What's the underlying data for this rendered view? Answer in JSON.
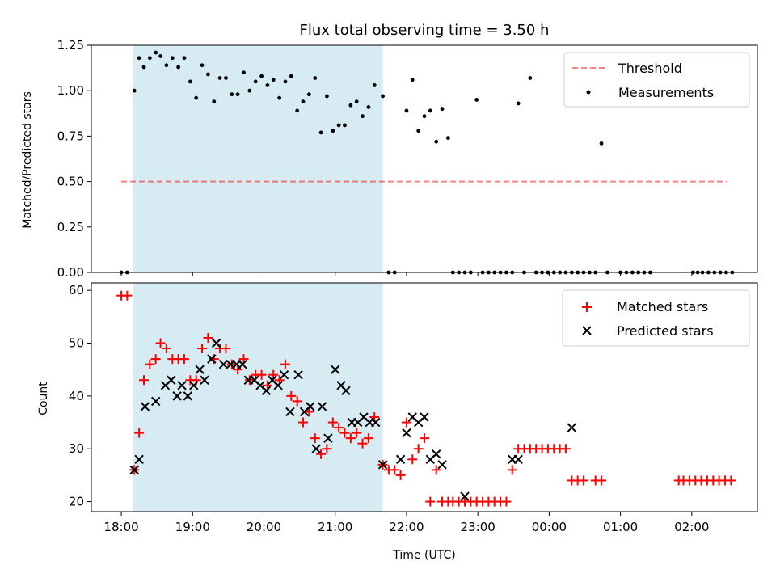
{
  "chart_data": [
    {
      "type": "scatter",
      "title": "Flux total observing time = 3.50 h",
      "ylabel": "Matched/Predicted stars",
      "xlabel": "",
      "ylim": [
        0,
        1.25
      ],
      "x_unit": "hours since 18:00 UTC",
      "xlim": [
        -0.42,
        8.92
      ],
      "yticks": [
        {
          "v": 0.0,
          "label": "0.00"
        },
        {
          "v": 0.25,
          "label": "0.25"
        },
        {
          "v": 0.5,
          "label": "0.50"
        },
        {
          "v": 0.75,
          "label": "0.75"
        },
        {
          "v": 1.0,
          "label": "1.00"
        },
        {
          "v": 1.25,
          "label": "1.25"
        }
      ],
      "shaded_span": {
        "x_start": 0.167,
        "x_end": 3.667,
        "color": "#add8e6"
      },
      "threshold": {
        "name": "Threshold",
        "value": 0.5,
        "x_start": 0.0,
        "x_end": 8.5,
        "color": "#ff0000"
      },
      "legend": {
        "placement": "top-right",
        "entries": [
          "Threshold",
          "Measurements"
        ]
      },
      "series": [
        {
          "name": "Measurements",
          "color": "#000000",
          "marker": "dot",
          "points": [
            [
              0.0,
              0.0
            ],
            [
              0.083,
              0.0
            ],
            [
              0.183,
              1.0
            ],
            [
              0.25,
              1.18
            ],
            [
              0.317,
              1.13
            ],
            [
              0.4,
              1.18
            ],
            [
              0.483,
              1.21
            ],
            [
              0.55,
              1.19
            ],
            [
              0.633,
              1.14
            ],
            [
              0.717,
              1.18
            ],
            [
              0.8,
              1.13
            ],
            [
              0.883,
              1.18
            ],
            [
              0.967,
              1.05
            ],
            [
              1.05,
              0.96
            ],
            [
              1.133,
              1.14
            ],
            [
              1.217,
              1.09
            ],
            [
              1.3,
              0.94
            ],
            [
              1.383,
              1.07
            ],
            [
              1.467,
              1.07
            ],
            [
              1.55,
              0.98
            ],
            [
              1.633,
              0.98
            ],
            [
              1.717,
              1.1
            ],
            [
              1.8,
              1.0
            ],
            [
              1.883,
              1.05
            ],
            [
              1.967,
              1.08
            ],
            [
              2.05,
              1.03
            ],
            [
              2.133,
              1.06
            ],
            [
              2.217,
              0.96
            ],
            [
              2.3,
              1.05
            ],
            [
              2.383,
              1.08
            ],
            [
              2.467,
              0.89
            ],
            [
              2.55,
              0.94
            ],
            [
              2.633,
              0.98
            ],
            [
              2.717,
              1.07
            ],
            [
              2.8,
              0.77
            ],
            [
              2.883,
              0.97
            ],
            [
              2.967,
              0.78
            ],
            [
              3.05,
              0.81
            ],
            [
              3.133,
              0.81
            ],
            [
              3.217,
              0.92
            ],
            [
              3.3,
              0.94
            ],
            [
              3.383,
              0.86
            ],
            [
              3.467,
              0.91
            ],
            [
              3.55,
              1.03
            ],
            [
              3.667,
              0.97
            ],
            [
              3.75,
              0.0
            ],
            [
              3.833,
              0.0
            ],
            [
              4.0,
              0.89
            ],
            [
              4.083,
              1.06
            ],
            [
              4.167,
              0.78
            ],
            [
              4.25,
              0.86
            ],
            [
              4.333,
              0.89
            ],
            [
              4.417,
              0.72
            ],
            [
              4.5,
              0.9
            ],
            [
              4.583,
              0.74
            ],
            [
              4.65,
              0.0
            ],
            [
              4.733,
              0.0
            ],
            [
              4.817,
              0.0
            ],
            [
              4.9,
              0.0
            ],
            [
              4.983,
              0.95
            ],
            [
              5.067,
              0.0
            ],
            [
              5.15,
              0.0
            ],
            [
              5.233,
              0.0
            ],
            [
              5.317,
              0.0
            ],
            [
              5.4,
              0.0
            ],
            [
              5.483,
              0.0
            ],
            [
              5.567,
              0.93
            ],
            [
              5.65,
              0.0
            ],
            [
              5.733,
              1.07
            ],
            [
              5.817,
              0.0
            ],
            [
              5.9,
              0.0
            ],
            [
              5.983,
              0.0
            ],
            [
              6.067,
              0.0
            ],
            [
              6.15,
              0.0
            ],
            [
              6.233,
              0.0
            ],
            [
              6.317,
              0.0
            ],
            [
              6.4,
              0.0
            ],
            [
              6.483,
              0.0
            ],
            [
              6.567,
              0.0
            ],
            [
              6.65,
              0.0
            ],
            [
              6.733,
              0.71
            ],
            [
              6.817,
              0.0
            ],
            [
              7.0,
              0.0
            ],
            [
              7.083,
              0.0
            ],
            [
              7.167,
              0.0
            ],
            [
              7.25,
              0.0
            ],
            [
              7.333,
              0.0
            ],
            [
              7.417,
              0.0
            ],
            [
              8.017,
              0.0
            ],
            [
              8.083,
              0.0
            ],
            [
              8.15,
              0.0
            ],
            [
              8.233,
              0.0
            ],
            [
              8.317,
              0.0
            ],
            [
              8.4,
              0.0
            ],
            [
              8.483,
              0.0
            ],
            [
              8.567,
              0.0
            ]
          ]
        }
      ]
    },
    {
      "type": "scatter",
      "title": "",
      "xlabel": "Time (UTC)",
      "ylabel": "Count",
      "ylim": [
        18.1,
        61.4
      ],
      "x_unit": "hours since 18:00 UTC",
      "xlim": [
        -0.42,
        8.92
      ],
      "yticks": [
        {
          "v": 20,
          "label": "20"
        },
        {
          "v": 30,
          "label": "30"
        },
        {
          "v": 40,
          "label": "40"
        },
        {
          "v": 50,
          "label": "50"
        },
        {
          "v": 60,
          "label": "60"
        }
      ],
      "xticks": [
        {
          "v": 0,
          "label": "18:00"
        },
        {
          "v": 1,
          "label": "19:00"
        },
        {
          "v": 2,
          "label": "20:00"
        },
        {
          "v": 3,
          "label": "21:00"
        },
        {
          "v": 4,
          "label": "22:00"
        },
        {
          "v": 5,
          "label": "23:00"
        },
        {
          "v": 6,
          "label": "00:00"
        },
        {
          "v": 7,
          "label": "01:00"
        },
        {
          "v": 8,
          "label": "02:00"
        }
      ],
      "shaded_span": {
        "x_start": 0.167,
        "x_end": 3.667,
        "color": "#add8e6"
      },
      "legend": {
        "placement": "top-right",
        "entries": [
          "Matched stars",
          "Predicted stars"
        ]
      },
      "series": [
        {
          "name": "Matched stars",
          "color": "#ff0000",
          "marker": "plus",
          "points": [
            [
              0.0,
              59
            ],
            [
              0.083,
              59
            ],
            [
              0.183,
              26
            ],
            [
              0.25,
              33
            ],
            [
              0.317,
              43
            ],
            [
              0.4,
              46
            ],
            [
              0.483,
              47
            ],
            [
              0.55,
              50
            ],
            [
              0.633,
              49
            ],
            [
              0.717,
              47
            ],
            [
              0.8,
              47
            ],
            [
              0.883,
              47
            ],
            [
              0.967,
              43
            ],
            [
              1.05,
              43
            ],
            [
              1.133,
              49
            ],
            [
              1.217,
              51
            ],
            [
              1.3,
              47
            ],
            [
              1.383,
              49
            ],
            [
              1.467,
              49
            ],
            [
              1.55,
              46
            ],
            [
              1.633,
              45
            ],
            [
              1.717,
              47
            ],
            [
              1.8,
              43
            ],
            [
              1.883,
              44
            ],
            [
              1.967,
              44
            ],
            [
              2.05,
              42
            ],
            [
              2.133,
              44
            ],
            [
              2.217,
              43
            ],
            [
              2.3,
              46
            ],
            [
              2.383,
              40
            ],
            [
              2.467,
              39
            ],
            [
              2.55,
              35
            ],
            [
              2.633,
              37
            ],
            [
              2.717,
              32
            ],
            [
              2.8,
              29
            ],
            [
              2.883,
              30
            ],
            [
              2.967,
              35
            ],
            [
              3.05,
              34
            ],
            [
              3.133,
              33
            ],
            [
              3.217,
              32
            ],
            [
              3.3,
              33
            ],
            [
              3.383,
              31
            ],
            [
              3.467,
              32
            ],
            [
              3.55,
              36
            ],
            [
              3.667,
              27
            ],
            [
              3.75,
              26
            ],
            [
              3.833,
              26
            ],
            [
              3.917,
              25
            ],
            [
              4.0,
              35
            ],
            [
              4.083,
              28
            ],
            [
              4.167,
              30
            ],
            [
              4.25,
              32
            ],
            [
              4.333,
              20
            ],
            [
              4.417,
              26
            ],
            [
              4.5,
              20
            ],
            [
              4.583,
              20
            ],
            [
              4.65,
              20
            ],
            [
              4.733,
              20
            ],
            [
              4.817,
              20
            ],
            [
              4.9,
              20
            ],
            [
              4.983,
              20
            ],
            [
              5.067,
              20
            ],
            [
              5.15,
              20
            ],
            [
              5.233,
              20
            ],
            [
              5.317,
              20
            ],
            [
              5.4,
              20
            ],
            [
              5.483,
              26
            ],
            [
              5.567,
              30
            ],
            [
              5.65,
              30
            ],
            [
              5.733,
              30
            ],
            [
              5.817,
              30
            ],
            [
              5.9,
              30
            ],
            [
              5.983,
              30
            ],
            [
              6.067,
              30
            ],
            [
              6.15,
              30
            ],
            [
              6.233,
              30
            ],
            [
              6.317,
              24
            ],
            [
              6.4,
              24
            ],
            [
              6.483,
              24
            ],
            [
              6.65,
              24
            ],
            [
              6.733,
              24
            ],
            [
              7.817,
              24
            ],
            [
              7.883,
              24
            ],
            [
              7.967,
              24
            ],
            [
              8.05,
              24
            ],
            [
              8.133,
              24
            ],
            [
              8.217,
              24
            ],
            [
              8.3,
              24
            ],
            [
              8.383,
              24
            ],
            [
              8.467,
              24
            ],
            [
              8.55,
              24
            ]
          ]
        },
        {
          "name": "Predicted stars",
          "color": "#000000",
          "marker": "x",
          "points": [
            [
              0.183,
              26
            ],
            [
              0.25,
              28
            ],
            [
              0.333,
              38
            ],
            [
              0.483,
              39
            ],
            [
              0.617,
              42
            ],
            [
              0.7,
              43
            ],
            [
              0.783,
              40
            ],
            [
              0.85,
              42
            ],
            [
              0.933,
              40
            ],
            [
              1.017,
              42
            ],
            [
              1.1,
              45
            ],
            [
              1.167,
              43
            ],
            [
              1.267,
              47
            ],
            [
              1.333,
              50
            ],
            [
              1.433,
              46
            ],
            [
              1.533,
              46
            ],
            [
              1.617,
              46
            ],
            [
              1.7,
              46
            ],
            [
              1.783,
              43
            ],
            [
              1.867,
              43
            ],
            [
              1.95,
              42
            ],
            [
              2.033,
              41
            ],
            [
              2.117,
              43
            ],
            [
              2.2,
              42
            ],
            [
              2.283,
              44
            ],
            [
              2.367,
              37
            ],
            [
              2.483,
              44
            ],
            [
              2.567,
              37
            ],
            [
              2.65,
              38
            ],
            [
              2.733,
              30
            ],
            [
              2.817,
              38
            ],
            [
              2.9,
              32
            ],
            [
              3.0,
              45
            ],
            [
              3.083,
              42
            ],
            [
              3.15,
              41
            ],
            [
              3.233,
              35
            ],
            [
              3.317,
              35
            ],
            [
              3.4,
              36
            ],
            [
              3.483,
              35
            ],
            [
              3.567,
              35
            ],
            [
              3.667,
              27
            ],
            [
              3.917,
              28
            ],
            [
              4.0,
              33
            ],
            [
              4.083,
              36
            ],
            [
              4.167,
              35
            ],
            [
              4.25,
              36
            ],
            [
              4.333,
              28
            ],
            [
              4.417,
              29
            ],
            [
              4.5,
              27
            ],
            [
              4.817,
              21
            ],
            [
              5.483,
              28
            ],
            [
              5.567,
              28
            ],
            [
              6.317,
              34
            ]
          ]
        }
      ]
    }
  ]
}
